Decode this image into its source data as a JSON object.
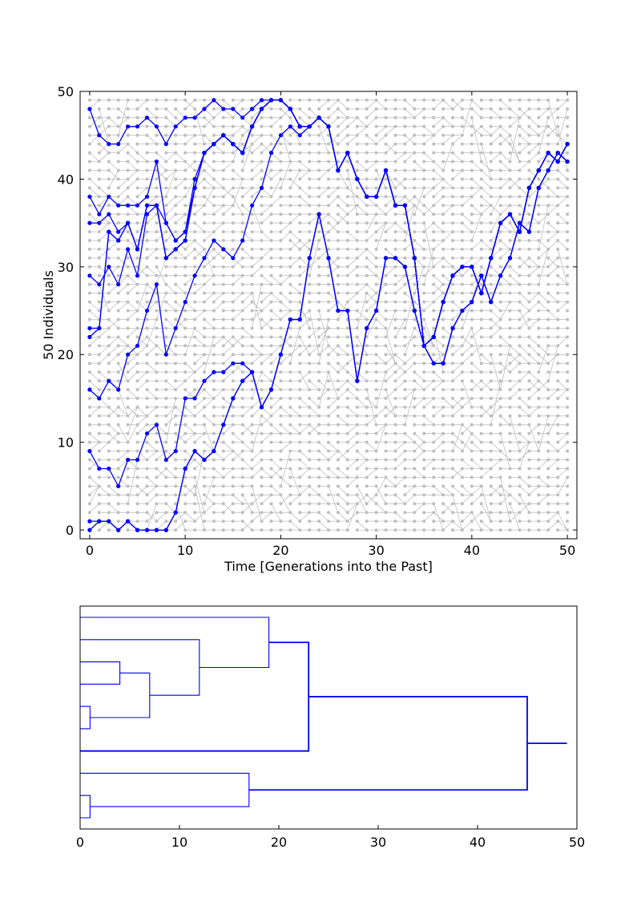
{
  "chart_data": [
    {
      "type": "line",
      "xlabel": "Time [Generations into the Past]",
      "ylabel": "50 Individuals",
      "xlim": [
        -1,
        51
      ],
      "ylim": [
        -1,
        50
      ],
      "xticks": [
        "0",
        "10",
        "20",
        "30",
        "40",
        "50"
      ],
      "yticks": [
        "0",
        "10",
        "20",
        "30",
        "40",
        "50"
      ],
      "grid": false,
      "background_lattice": {
        "x_range": [
          0,
          50
        ],
        "y_range": [
          0,
          49
        ],
        "color": "#bfbfbf"
      },
      "series": [
        {
          "color": "#0000ff",
          "y": [
            48,
            45,
            44,
            44,
            46,
            46,
            47,
            46,
            44,
            46,
            47,
            47,
            48,
            49,
            48,
            48,
            47,
            48,
            49,
            49,
            49,
            48,
            46,
            46,
            47,
            46,
            41,
            43,
            40,
            38,
            38,
            41,
            37,
            37,
            31,
            21,
            22,
            26,
            29,
            30,
            30,
            27,
            31,
            35,
            36,
            34,
            39,
            41,
            43,
            42,
            44
          ]
        },
        {
          "color": "#0000ff",
          "y": [
            38,
            36,
            38,
            37,
            37,
            37,
            38,
            42,
            35,
            33,
            34,
            40,
            43,
            44,
            45,
            44,
            43,
            46,
            48,
            49,
            49,
            48,
            46,
            46,
            47,
            46,
            41,
            43,
            40,
            38,
            38,
            41,
            37,
            37,
            31,
            21,
            22,
            26,
            29,
            30,
            30,
            27,
            31,
            35,
            36,
            34,
            39,
            41,
            43,
            42,
            44
          ]
        },
        {
          "color": "#0000ff",
          "y": [
            35,
            35,
            36,
            34,
            35,
            32,
            37,
            37,
            35,
            33,
            34,
            39,
            43,
            44,
            45,
            44,
            43,
            46,
            48,
            49,
            49,
            48,
            46,
            46,
            47,
            46,
            41,
            43,
            40,
            38,
            38,
            41,
            37,
            37,
            31,
            21,
            22,
            26,
            29,
            30,
            30,
            27,
            31,
            35,
            36,
            34,
            39,
            41,
            43,
            42,
            44
          ]
        },
        {
          "color": "#0000ff",
          "y": [
            29,
            28,
            30,
            28,
            32,
            29,
            36,
            37,
            31,
            32,
            33,
            39,
            43,
            44,
            45,
            44,
            43,
            46,
            48,
            49,
            49,
            48,
            46,
            46,
            47,
            46,
            41,
            43,
            40,
            38,
            38,
            41,
            37,
            37,
            31,
            21,
            22,
            26,
            29,
            30,
            30,
            27,
            31,
            35,
            36,
            34,
            39,
            41,
            43,
            42,
            44
          ]
        },
        {
          "color": "#0000ff",
          "y": [
            23,
            23,
            34,
            33,
            35,
            32,
            37,
            37,
            31,
            32,
            33,
            39,
            43,
            44,
            45,
            44,
            43,
            46,
            48,
            49,
            49,
            48,
            46,
            46,
            47,
            46,
            41,
            43,
            40,
            38,
            38,
            41,
            37,
            37,
            31,
            21,
            22,
            26,
            29,
            30,
            30,
            27,
            31,
            35,
            36,
            34,
            39,
            41,
            43,
            42,
            44
          ]
        },
        {
          "color": "#0000ff",
          "y": [
            22,
            23,
            34,
            33,
            35,
            32,
            37,
            37,
            31,
            32,
            33,
            39,
            43,
            44,
            45,
            44,
            43,
            46,
            48,
            49,
            49,
            48,
            46,
            46,
            47,
            46,
            41,
            43,
            40,
            38,
            38,
            41,
            37,
            37,
            31,
            21,
            22,
            26,
            29,
            30,
            30,
            27,
            31,
            35,
            36,
            34,
            39,
            41,
            43,
            42,
            44
          ]
        },
        {
          "color": "#0000ff",
          "y": [
            16,
            15,
            17,
            16,
            20,
            21,
            25,
            28,
            20,
            23,
            26,
            29,
            31,
            33,
            32,
            31,
            33,
            37,
            39,
            43,
            45,
            46,
            45,
            46,
            47,
            46,
            41,
            43,
            40,
            38,
            38,
            41,
            37,
            37,
            31,
            21,
            22,
            26,
            29,
            30,
            30,
            27,
            31,
            35,
            36,
            34,
            39,
            41,
            43,
            42,
            44
          ]
        },
        {
          "color": "#0000ff",
          "y": [
            9,
            7,
            7,
            5,
            8,
            8,
            11,
            12,
            8,
            9,
            15,
            15,
            17,
            18,
            18,
            19,
            19,
            18,
            14,
            16,
            20,
            24,
            24,
            31,
            36,
            31,
            25,
            25,
            17,
            23,
            25,
            31,
            31,
            30,
            25,
            21,
            19,
            19,
            23,
            25,
            26,
            29,
            26,
            29,
            31,
            35,
            34,
            39,
            41,
            43,
            42
          ]
        },
        {
          "color": "#0000ff",
          "y": [
            1,
            1,
            1,
            0,
            1,
            0,
            0,
            0,
            0,
            2,
            7,
            9,
            8,
            9,
            12,
            15,
            17,
            18,
            14,
            16,
            20,
            24,
            24,
            31,
            36,
            31,
            25,
            25,
            17,
            23,
            25,
            31,
            31,
            30,
            25,
            21,
            19,
            19,
            23,
            25,
            26,
            29,
            26,
            29,
            31,
            35,
            34,
            39,
            41,
            43,
            42
          ]
        },
        {
          "color": "#0000ff",
          "y": [
            0,
            1,
            1,
            0,
            1,
            0,
            0,
            0,
            0,
            2,
            7,
            9,
            8,
            9,
            12,
            15,
            17,
            18,
            14,
            16,
            20,
            24,
            24,
            31,
            36,
            31,
            25,
            25,
            17,
            23,
            25,
            31,
            31,
            30,
            25,
            21,
            19,
            19,
            23,
            25,
            26,
            29,
            26,
            29,
            31,
            35,
            34,
            39,
            41,
            43,
            42
          ]
        }
      ]
    },
    {
      "type": "dendrogram",
      "xlim": [
        0,
        50
      ],
      "xticks": [
        "0",
        "10",
        "20",
        "30",
        "40",
        "50"
      ],
      "grid": false,
      "color": "#0000ff",
      "leaves": 10,
      "merges": [
        {
          "left_leaf": 4,
          "right_leaf": 5,
          "height": 1
        },
        {
          "left_leaf": 8,
          "right_leaf": 9,
          "height": 1
        },
        {
          "left_leaf": 2,
          "right_leaf": 3,
          "height": 4
        },
        {
          "left_leaf": 2.5,
          "right_leaf": 4.5,
          "height": 7
        },
        {
          "left_leaf": 1,
          "right_leaf": 3.5,
          "height": 12
        },
        {
          "left_leaf": 0,
          "right_leaf": 2.25,
          "height": 19
        },
        {
          "left_leaf": 7,
          "right_leaf": 8.5,
          "height": 17
        },
        {
          "left_leaf": 1.125,
          "right_leaf": 6,
          "height": 23
        },
        {
          "left_leaf": 3.5625,
          "right_leaf": 7.75,
          "height": 45
        }
      ],
      "root_height": 49
    }
  ]
}
